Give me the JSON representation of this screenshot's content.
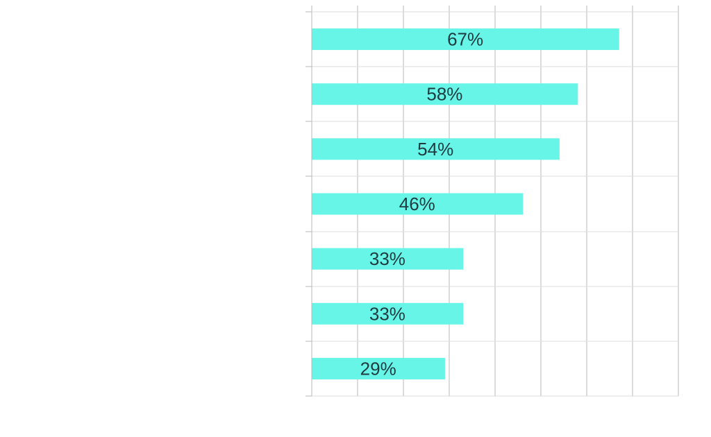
{
  "chart_data": {
    "type": "bar",
    "orientation": "horizontal",
    "categories": [
      "",
      "",
      "",
      "",
      "",
      "",
      ""
    ],
    "values": [
      67,
      58,
      54,
      46,
      33,
      33,
      29
    ],
    "data_labels": [
      "67%",
      "58%",
      "54%",
      "46%",
      "33%",
      "33%",
      "29%"
    ],
    "xlim": [
      0,
      80
    ],
    "x_grid_step": 10,
    "grid": true,
    "legend": "none",
    "colors": {
      "bar": "#66f5e6",
      "label": "#1f3b40",
      "grid": "#b8b8b8"
    }
  }
}
